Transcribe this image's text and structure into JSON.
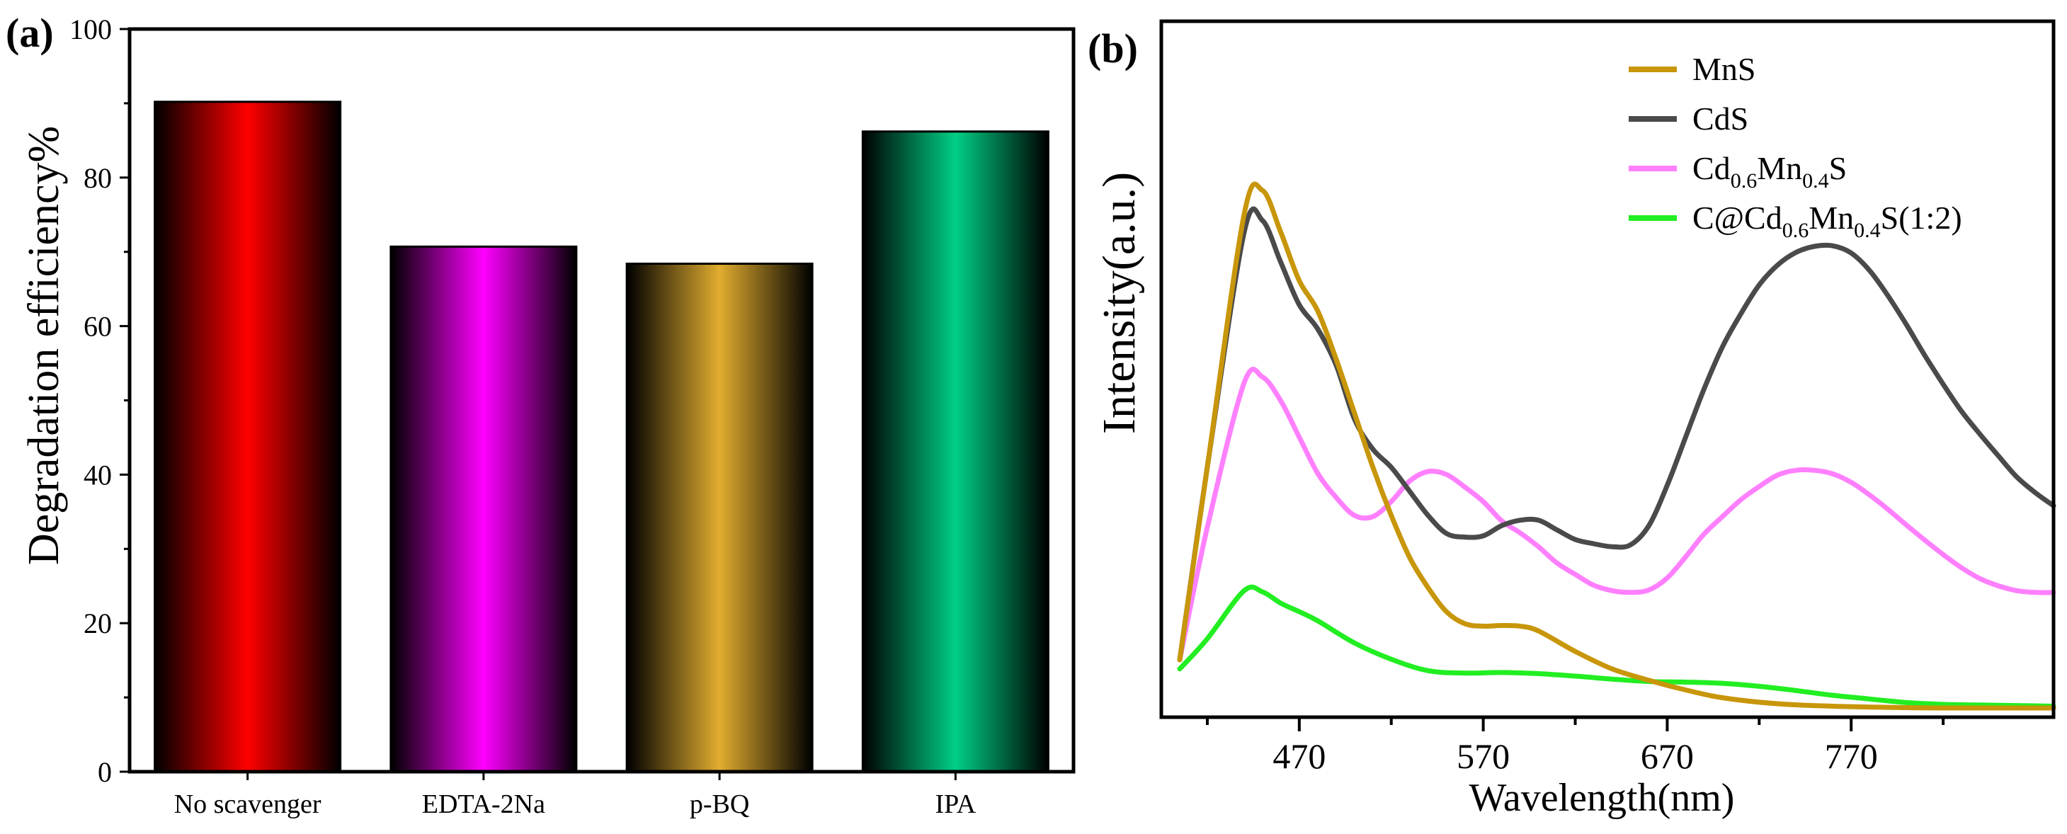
{
  "chart_data": [
    {
      "panel_label": "(a)",
      "type": "bar",
      "title": "",
      "xlabel": "",
      "ylabel": "Degradation efficiency%",
      "ylim": [
        0,
        100
      ],
      "yticks": [
        "0",
        "20",
        "40",
        "60",
        "80",
        "100"
      ],
      "categories": [
        "No scavenger",
        "EDTA-2Na",
        "p-BQ",
        "IPA"
      ],
      "values": [
        90.2,
        70.7,
        68.4,
        86.2
      ],
      "colors": [
        "#ff0000",
        "#ff00ff",
        "#e2ad2f",
        "#00cf85"
      ]
    },
    {
      "panel_label": "(b)",
      "type": "line",
      "title": "",
      "xlabel": "Wavelength(nm)",
      "ylabel": "Intensity(a.u.)",
      "xlim": [
        395,
        880
      ],
      "xticks": [
        "470",
        "570",
        "670",
        "770"
      ],
      "legend_position": "top-right",
      "series": [
        {
          "name": "MnS",
          "legend": {
            "parts": [
              {
                "t": "MnS"
              }
            ]
          },
          "color": "#c8960a",
          "x": [
            405,
            420,
            440,
            450,
            460,
            470,
            480,
            490,
            500,
            510,
            520,
            530,
            540,
            550,
            560,
            570,
            580,
            590,
            600,
            620,
            640,
            660,
            680,
            700,
            730,
            760,
            790,
            820,
            850,
            880
          ],
          "y": [
            8,
            40,
            82,
            86,
            79,
            71,
            66,
            58,
            49,
            40,
            32,
            25,
            20,
            16,
            14,
            13.6,
            13.7,
            13.6,
            12.8,
            9.4,
            6.5,
            4.6,
            3.0,
            1.7,
            0.7,
            0.3,
            0.1,
            0.0,
            0.0,
            0.0
          ]
        },
        {
          "name": "CdS",
          "legend": {
            "parts": [
              {
                "t": "CdS"
              }
            ]
          },
          "color": "#4a4a4a",
          "x": [
            405,
            420,
            440,
            450,
            460,
            470,
            480,
            490,
            500,
            510,
            520,
            530,
            540,
            550,
            560,
            570,
            580,
            590,
            600,
            610,
            620,
            630,
            640,
            650,
            660,
            670,
            680,
            690,
            700,
            710,
            720,
            730,
            740,
            750,
            760,
            770,
            780,
            790,
            800,
            810,
            820,
            830,
            840,
            850,
            860,
            870,
            880
          ],
          "y": [
            8,
            40,
            79,
            81,
            74,
            67,
            63,
            57,
            48,
            43,
            40,
            36,
            32,
            29,
            28.4,
            28.6,
            30.3,
            31.2,
            31.2,
            29.6,
            28,
            27.3,
            26.8,
            27.1,
            30.3,
            37,
            45,
            53,
            60,
            65.5,
            70.3,
            73.6,
            75.7,
            76.7,
            76.8,
            75.6,
            72.7,
            68.5,
            63.7,
            58.6,
            53.8,
            49.3,
            45.5,
            41.9,
            38.4,
            35.8,
            33.6
          ]
        },
        {
          "name": "Cd0.6Mn0.4S",
          "legend": {
            "parts": [
              {
                "t": "Cd"
              },
              {
                "t": "0.6",
                "sub": true
              },
              {
                "t": "Mn"
              },
              {
                "t": "0.4",
                "sub": true
              },
              {
                "t": "S"
              }
            ]
          },
          "color": "#ff80ff",
          "x": [
            405,
            420,
            440,
            450,
            460,
            470,
            480,
            490,
            500,
            510,
            520,
            530,
            540,
            550,
            560,
            570,
            580,
            590,
            600,
            610,
            620,
            630,
            640,
            650,
            660,
            670,
            680,
            690,
            700,
            710,
            720,
            730,
            740,
            750,
            760,
            770,
            780,
            790,
            800,
            810,
            820,
            830,
            840,
            850,
            860,
            870,
            880
          ],
          "y": [
            8,
            30,
            54,
            55,
            51,
            45,
            39,
            35,
            32,
            31.8,
            34.3,
            37.7,
            39.3,
            38.8,
            36.7,
            34.3,
            31.1,
            29.1,
            26.8,
            24.1,
            22.2,
            20.4,
            19.5,
            19.2,
            19.6,
            21.6,
            25.1,
            28.9,
            31.8,
            34.6,
            36.8,
            38.7,
            39.5,
            39.5,
            38.9,
            37.5,
            35.4,
            33,
            30.4,
            27.9,
            25.5,
            23.3,
            21.5,
            20.3,
            19.5,
            19.2,
            19.2
          ]
        },
        {
          "name": "C@Cd0.6Mn0.4S(1:2)",
          "legend": {
            "parts": [
              {
                "t": "C@Cd"
              },
              {
                "t": "0.6",
                "sub": true
              },
              {
                "t": "Mn"
              },
              {
                "t": "0.4",
                "sub": true
              },
              {
                "t": "S(1:2)"
              }
            ]
          },
          "color": "#22ee22",
          "x": [
            405,
            420,
            440,
            450,
            460,
            470,
            480,
            500,
            520,
            540,
            560,
            580,
            600,
            620,
            640,
            660,
            680,
            700,
            720,
            740,
            760,
            780,
            800,
            820,
            840,
            860,
            880
          ],
          "y": [
            6.5,
            11.5,
            19.5,
            19.3,
            17.4,
            16,
            14.5,
            10.8,
            8.1,
            6.2,
            5.8,
            5.9,
            5.7,
            5.3,
            4.8,
            4.4,
            4.3,
            4.1,
            3.6,
            2.9,
            2.1,
            1.5,
            0.9,
            0.6,
            0.5,
            0.4,
            0.3
          ]
        }
      ]
    }
  ]
}
